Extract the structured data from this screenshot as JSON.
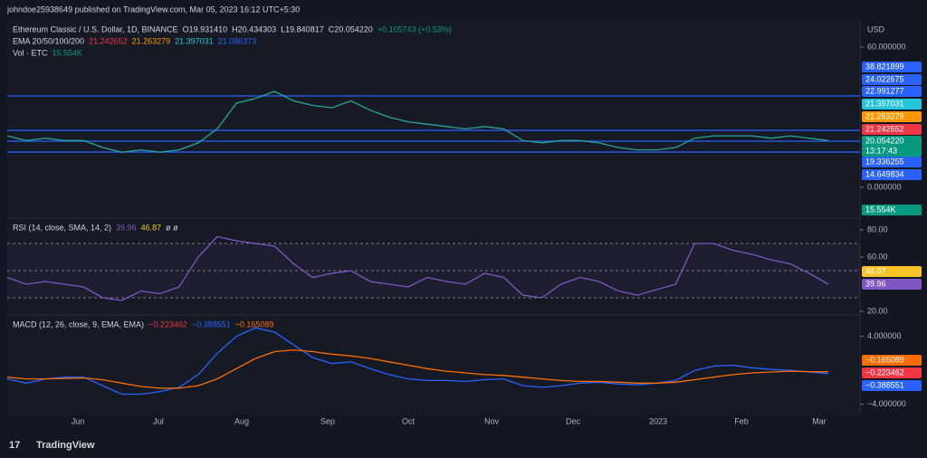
{
  "header": {
    "byline": "johndoe25938649 published on TradingView.com, Mar 05, 2023 16:12 UTC+5:30",
    "symbol": "Ethereum Classic / U.S. Dollar, 1D, BINANCE",
    "ohlc": [
      "O19.931410",
      "H20.434303",
      "L19.840817",
      "C20.054220",
      "+0.105743 (+0.53%)"
    ],
    "ema_label": "EMA 20/50/100/200",
    "ema_values": [
      {
        "text": "21.242652",
        "color": "#f23645"
      },
      {
        "text": "21.263279",
        "color": "#ff9800"
      },
      {
        "text": "21.397031",
        "color": "#26c6da"
      },
      {
        "text": "21.086373",
        "color": "#2962ff"
      }
    ],
    "vol_label": "Vol · ETC",
    "vol_value": "15.554K",
    "currency": "USD",
    "logo": "TradingView"
  },
  "price_labels": [
    {
      "text": "38.821899",
      "color": "#2962ff"
    },
    {
      "text": "24.022675",
      "color": "#2962ff"
    },
    {
      "text": "22.991277",
      "color": "#2962ff"
    },
    {
      "text": "21.397031",
      "color": "#26c6da"
    },
    {
      "text": "21.263279",
      "color": "#ff9800"
    },
    {
      "text": "21.242652",
      "color": "#f23645"
    },
    {
      "text": "20.054220",
      "color": "#089981"
    },
    {
      "text": "13:17:43",
      "color": "#089981"
    },
    {
      "text": "19.336255",
      "color": "#2962ff"
    },
    {
      "text": "14.649834",
      "color": "#2962ff"
    }
  ],
  "volume_label": {
    "text": "15.554K",
    "color": "#089981"
  },
  "rsi_header": {
    "label": "RSI (14, close, SMA, 14, 2)",
    "values": [
      {
        "text": "39.96",
        "color": "#7e57c2"
      },
      {
        "text": "46.87",
        "color": "#f7c325"
      }
    ],
    "extra": "ø ø"
  },
  "rsi_labels": [
    {
      "text": "46.87",
      "color": "#f7c325"
    },
    {
      "text": "39.96",
      "color": "#7e57c2"
    }
  ],
  "macd_header": {
    "label": "MACD (12, 26, close, 9, EMA, EMA)",
    "values": [
      {
        "text": "−0.223462",
        "color": "#f23645"
      },
      {
        "text": "−0.388551",
        "color": "#2962ff"
      },
      {
        "text": "−0.165089",
        "color": "#ff6d00"
      }
    ]
  },
  "macd_labels": [
    {
      "text": "−0.165089",
      "color": "#ff6d00"
    },
    {
      "text": "−0.223462",
      "color": "#f23645"
    },
    {
      "text": "−0.388551",
      "color": "#2962ff"
    }
  ],
  "x_labels": [
    "Jun",
    "Jul",
    "Aug",
    "Sep",
    "Oct",
    "Nov",
    "Dec",
    "2023",
    "Feb",
    "Mar"
  ],
  "chart_data": [
    {
      "type": "line",
      "ylim": [
        -12.8,
        71.6
      ],
      "yticks": [
        {
          "value": 60,
          "label": "60.000000"
        },
        {
          "value": 0,
          "label": "0.000000"
        }
      ],
      "series": [
        {
          "name": "Ethereum Classic / U.S. Dollar, 1D, BINANCE",
          "color": "#26a69a",
          "values": [
            22,
            20,
            21,
            20,
            20,
            17,
            15,
            16,
            15,
            16,
            19,
            25,
            36,
            38,
            41,
            37,
            35,
            34,
            37,
            33,
            30,
            28,
            27,
            26,
            25,
            26,
            25,
            20,
            19,
            20,
            20,
            19,
            17,
            16,
            16,
            17,
            21,
            22,
            22,
            22,
            21,
            22,
            21,
            20
          ]
        }
      ]
    },
    {
      "type": "line",
      "ylim": [
        18,
        88
      ],
      "yticks": [
        {
          "value": 80,
          "label": "80.00"
        },
        {
          "value": 60,
          "label": "60.00"
        },
        {
          "value": 20,
          "label": "20.00"
        }
      ],
      "series": [
        {
          "name": "RSI",
          "color": "#7e57c2",
          "values": [
            45,
            40,
            42,
            40,
            38,
            30,
            28,
            35,
            33,
            38,
            60,
            75,
            72,
            70,
            68,
            55,
            45,
            48,
            50,
            42,
            40,
            38,
            45,
            42,
            40,
            48,
            45,
            32,
            30,
            40,
            45,
            42,
            35,
            32,
            36,
            40,
            70,
            70,
            65,
            62,
            58,
            55,
            48,
            40
          ]
        }
      ]
    },
    {
      "type": "line",
      "ylim": [
        -5.2,
        6.3
      ],
      "yticks": [
        {
          "value": 4,
          "label": "4.000000"
        },
        {
          "value": -4,
          "label": "−4.000000"
        }
      ],
      "series": [
        {
          "name": "MACD",
          "color": "#2962ff",
          "values": [
            -1,
            -1.5,
            -1,
            -0.8,
            -0.8,
            -1.8,
            -2.8,
            -2.8,
            -2.5,
            -2,
            -0.5,
            2,
            4,
            5,
            4.5,
            3,
            1.5,
            0.8,
            1,
            0.2,
            -0.5,
            -1,
            -1.2,
            -1.2,
            -1.3,
            -1.1,
            -1,
            -1.8,
            -2,
            -1.8,
            -1.5,
            -1.4,
            -1.6,
            -1.7,
            -1.5,
            -1.2,
            0,
            0.5,
            0.6,
            0.3,
            0.1,
            0,
            -0.2,
            -0.39
          ]
        },
        {
          "name": "Signal",
          "color": "#ff6d00",
          "values": [
            -0.8,
            -1,
            -1,
            -0.95,
            -0.9,
            -1.1,
            -1.5,
            -1.9,
            -2.1,
            -2.1,
            -1.8,
            -1,
            0.2,
            1.4,
            2.2,
            2.4,
            2.2,
            1.9,
            1.7,
            1.4,
            1,
            0.6,
            0.2,
            -0.1,
            -0.3,
            -0.5,
            -0.6,
            -0.8,
            -1,
            -1.2,
            -1.3,
            -1.3,
            -1.4,
            -1.5,
            -1.5,
            -1.4,
            -1.1,
            -0.8,
            -0.5,
            -0.3,
            -0.2,
            -0.1,
            -0.15,
            -0.165
          ]
        }
      ]
    }
  ]
}
